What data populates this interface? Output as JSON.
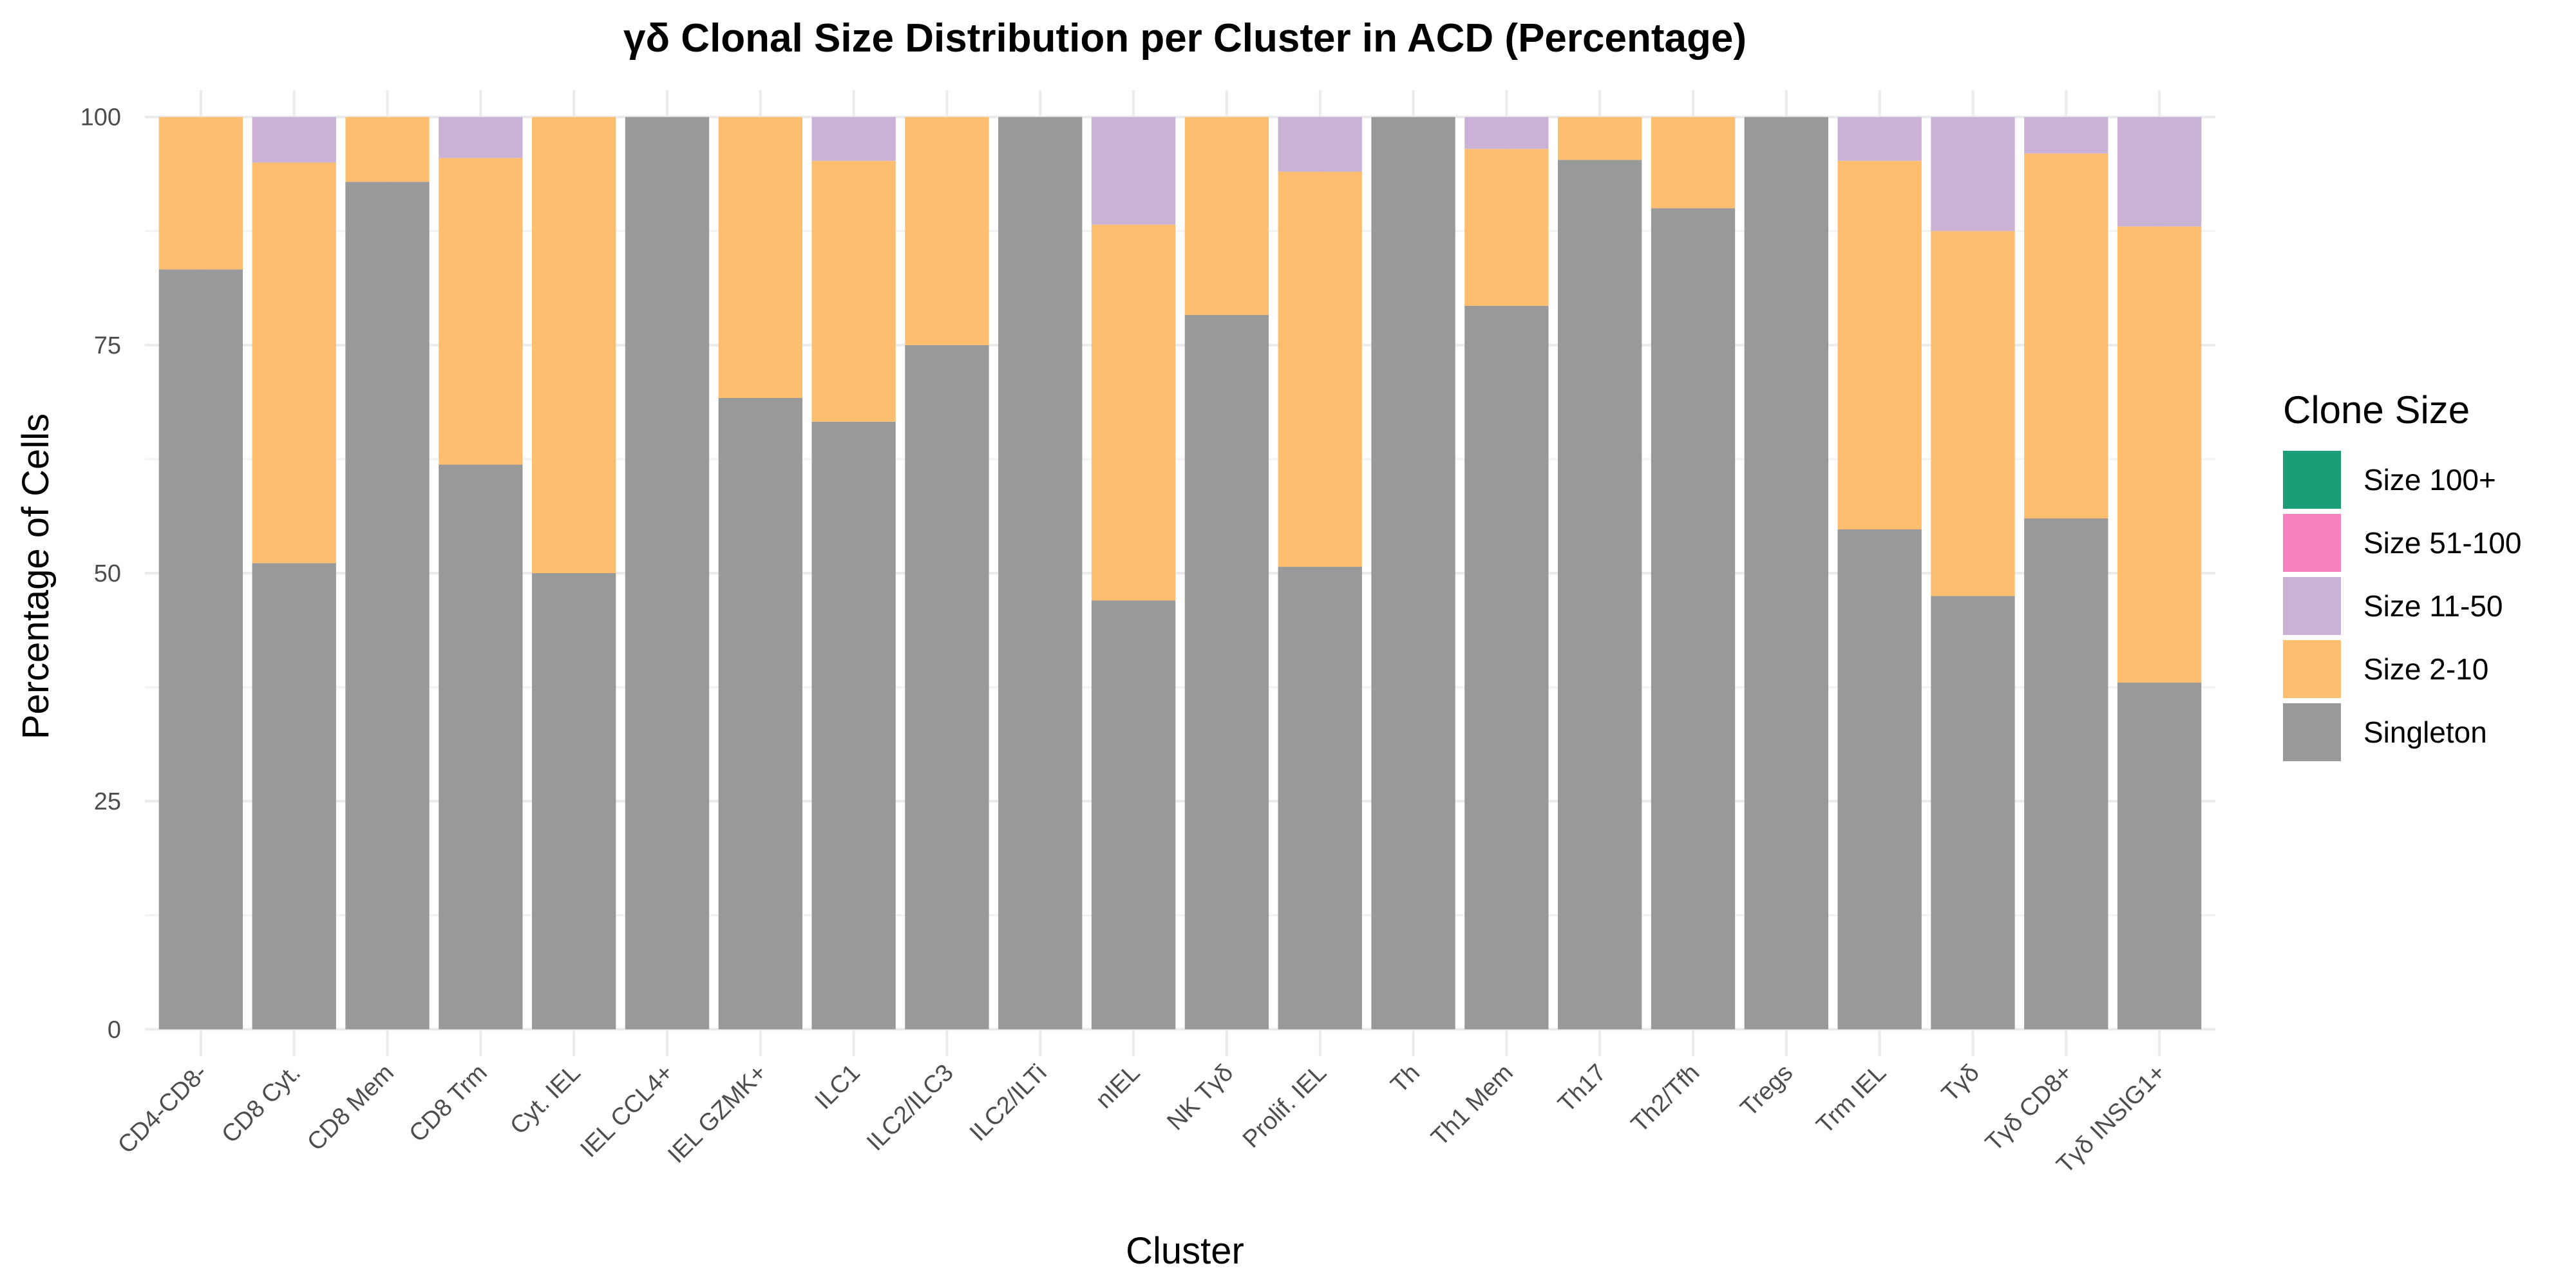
{
  "chart_data": {
    "type": "bar",
    "stacked": true,
    "title": "γδ Clonal Size Distribution per Cluster in ACD (Percentage)",
    "xlabel": "Cluster",
    "ylabel": "Percentage of Cells",
    "ylim": [
      0,
      100
    ],
    "yticks": [
      0,
      25,
      50,
      75,
      100
    ],
    "grid": true,
    "legend_title": "Clone Size",
    "legend_position": "right",
    "categories": [
      "CD4-CD8-",
      "CD8 Cyt.",
      "CD8 Mem",
      "CD8 Trm",
      "Cyt. IEL",
      "IEL CCL4+",
      "IEL GZMK+",
      "ILC1",
      "ILC2/ILC3",
      "ILC2/ILTi",
      "nIEL",
      "NK Tγδ",
      "Prolif. IEL",
      "Th",
      "Th1 Mem",
      "Th17",
      "Th2/Tfh",
      "Tregs",
      "Trm IEL",
      "Tγδ",
      "Tγδ CD8+",
      "Tγδ INSIG1+"
    ],
    "series": [
      {
        "name": "Size 100+",
        "color": "#1b9e77",
        "values": [
          0,
          0,
          0,
          0,
          0,
          0,
          0,
          0,
          0,
          0,
          0,
          0,
          0,
          0,
          0,
          0,
          0,
          0,
          0,
          0,
          0,
          0
        ]
      },
      {
        "name": "Size 51-100",
        "color": "#f781bf",
        "values": [
          0,
          0,
          0,
          0,
          0,
          0,
          0,
          0,
          0,
          0,
          0,
          0,
          0,
          0,
          0,
          0,
          0,
          0,
          0,
          0,
          0,
          0
        ]
      },
      {
        "name": "Size 11-50",
        "color": "#cab2d6",
        "values": [
          0,
          5.0,
          0,
          4.5,
          0,
          0,
          0,
          4.8,
          0,
          0,
          11.8,
          0,
          6.0,
          0,
          3.5,
          0,
          0,
          0,
          4.8,
          12.5,
          4.0,
          12.0
        ]
      },
      {
        "name": "Size 2-10",
        "color": "#fdbf6f",
        "values": [
          16.7,
          43.9,
          7.1,
          33.6,
          50.0,
          0,
          30.8,
          28.6,
          25.0,
          0,
          41.2,
          21.7,
          43.3,
          0,
          17.2,
          4.7,
          10.0,
          0,
          40.4,
          40.0,
          40.0,
          50.0
        ]
      },
      {
        "name": "Singleton",
        "color": "#999999",
        "values": [
          83.3,
          51.1,
          92.9,
          61.9,
          50.0,
          100,
          69.2,
          66.6,
          75.0,
          100,
          47.0,
          78.3,
          50.7,
          100,
          79.3,
          95.3,
          90.0,
          100,
          54.8,
          47.5,
          56.0,
          38.0
        ]
      }
    ]
  }
}
